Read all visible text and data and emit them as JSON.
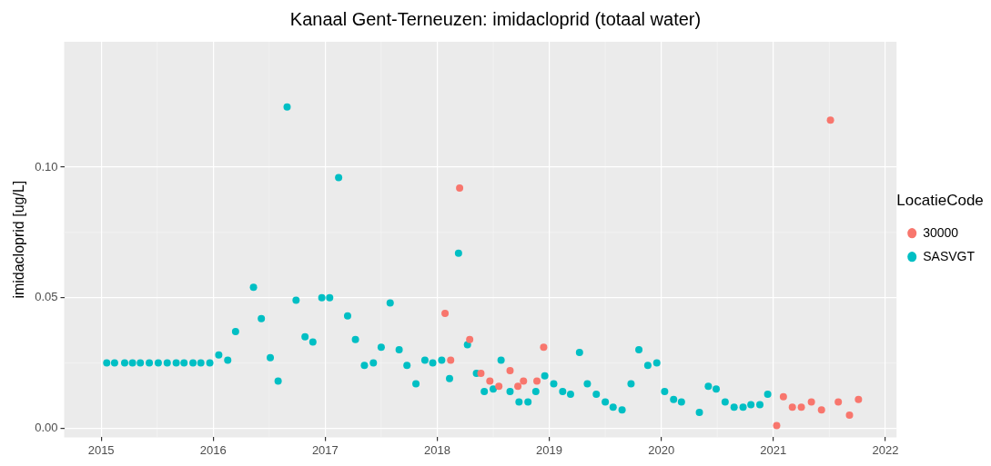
{
  "chart_data": {
    "type": "scatter",
    "title": "Kanaal Gent-Terneuzen: imidacloprid (totaal water)",
    "ylabel": "imidacloprid [ug/L]",
    "legend_title": "LocatieCode",
    "legend": "right",
    "grid": true,
    "marker": "circle",
    "xlim": [
      2014.67,
      2022.1
    ],
    "xticks": [
      2015,
      2016,
      2017,
      2018,
      2019,
      2020,
      2021,
      2022
    ],
    "ylim": [
      -0.0035,
      0.148
    ],
    "yticks": [
      {
        "value": 0,
        "label": "0.00"
      },
      {
        "value": 0.05,
        "label": "0.05"
      },
      {
        "value": 0.1,
        "label": "0.10"
      }
    ],
    "series": [
      {
        "name": "30000",
        "color": "#f8766d",
        "x": [
          2018.07,
          2018.12,
          2018.2,
          2018.29,
          2018.39,
          2018.47,
          2018.55,
          2018.65,
          2018.72,
          2018.77,
          2018.89,
          2018.95,
          2021.03,
          2021.09,
          2021.17,
          2021.25,
          2021.34,
          2021.43,
          2021.51,
          2021.58,
          2021.68,
          2021.76
        ],
        "values": [
          0.044,
          0.026,
          0.092,
          0.034,
          0.021,
          0.018,
          0.016,
          0.022,
          0.016,
          0.018,
          0.018,
          0.031,
          0.001,
          0.012,
          0.008,
          0.008,
          0.01,
          0.007,
          0.118,
          0.01,
          0.005,
          0.011
        ]
      },
      {
        "name": "SASVGT",
        "color": "#00bfc4",
        "x": [
          2015.05,
          2015.12,
          2015.21,
          2015.28,
          2015.35,
          2015.43,
          2015.51,
          2015.59,
          2015.67,
          2015.74,
          2015.82,
          2015.89,
          2015.97,
          2016.05,
          2016.13,
          2016.2,
          2016.36,
          2016.43,
          2016.51,
          2016.58,
          2016.66,
          2016.74,
          2016.82,
          2016.89,
          2016.97,
          2017.04,
          2017.12,
          2017.2,
          2017.27,
          2017.35,
          2017.43,
          2017.5,
          2017.58,
          2017.66,
          2017.73,
          2017.81,
          2017.89,
          2017.96,
          2018.04,
          2018.11,
          2018.19,
          2018.27,
          2018.35,
          2018.42,
          2018.5,
          2018.57,
          2018.65,
          2018.73,
          2018.81,
          2018.88,
          2018.96,
          2019.04,
          2019.12,
          2019.19,
          2019.27,
          2019.34,
          2019.42,
          2019.5,
          2019.57,
          2019.65,
          2019.73,
          2019.8,
          2019.88,
          2019.96,
          2020.03,
          2020.11,
          2020.18,
          2020.34,
          2020.42,
          2020.49,
          2020.57,
          2020.65,
          2020.73,
          2020.8,
          2020.88,
          2020.95
        ],
        "values": [
          0.025,
          0.025,
          0.025,
          0.025,
          0.025,
          0.025,
          0.025,
          0.025,
          0.025,
          0.025,
          0.025,
          0.025,
          0.025,
          0.028,
          0.026,
          0.037,
          0.054,
          0.042,
          0.027,
          0.018,
          0.123,
          0.049,
          0.035,
          0.033,
          0.05,
          0.05,
          0.096,
          0.043,
          0.034,
          0.024,
          0.025,
          0.031,
          0.048,
          0.03,
          0.024,
          0.017,
          0.026,
          0.025,
          0.026,
          0.019,
          0.067,
          0.032,
          0.021,
          0.014,
          0.015,
          0.026,
          0.014,
          0.01,
          0.01,
          0.014,
          0.02,
          0.017,
          0.014,
          0.013,
          0.029,
          0.017,
          0.013,
          0.01,
          0.008,
          0.007,
          0.017,
          0.03,
          0.024,
          0.025,
          0.014,
          0.011,
          0.01,
          0.006,
          0.016,
          0.015,
          0.01,
          0.008,
          0.008,
          0.009,
          0.009,
          0.013
        ]
      }
    ]
  }
}
